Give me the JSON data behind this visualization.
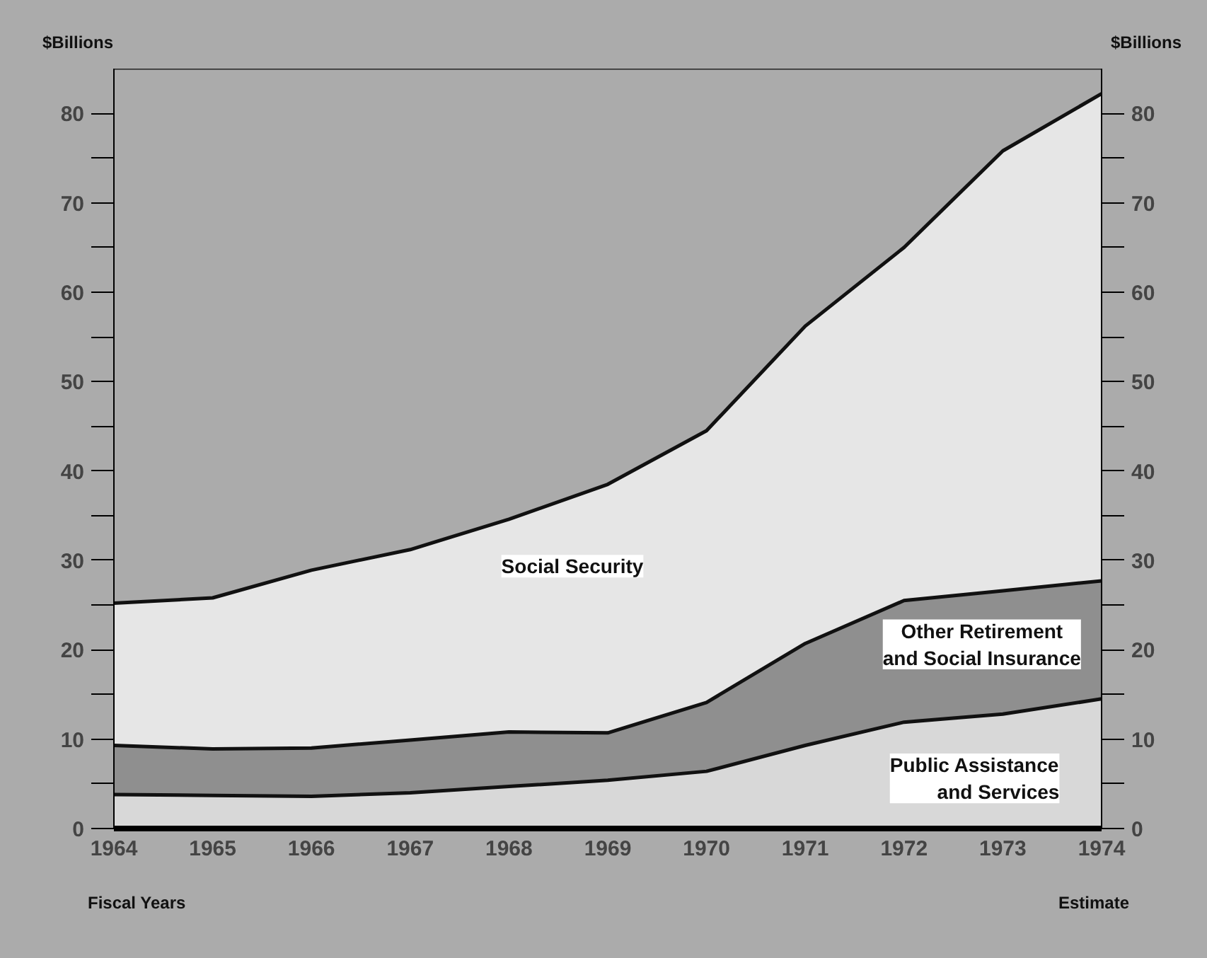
{
  "chart_data": {
    "type": "area",
    "stacked": true,
    "ylabel": "$Billions",
    "y2label": "$Billions",
    "x": [
      1964,
      1965,
      1966,
      1967,
      1968,
      1969,
      1970,
      1971,
      1972,
      1973,
      1974
    ],
    "xlim": [
      1964,
      1974
    ],
    "xticks": [
      1964,
      1965,
      1966,
      1967,
      1968,
      1969,
      1970,
      1971,
      1972,
      1973,
      1974
    ],
    "ylim": [
      0,
      85
    ],
    "yticks": [
      0,
      {
        "value": 5,
        "label": null
      },
      10,
      {
        "value": 15,
        "label": null
      },
      20,
      {
        "value": 25,
        "label": null
      },
      30,
      {
        "value": 35,
        "label": null
      },
      40,
      {
        "value": 45,
        "label": null
      },
      50,
      {
        "value": 55,
        "label": null
      },
      60,
      {
        "value": 65,
        "label": null
      },
      70,
      {
        "value": 75,
        "label": null
      },
      80
    ],
    "y2lim": [
      0,
      85
    ],
    "y2ticks": [
      0,
      {
        "value": 5,
        "label": null
      },
      10,
      {
        "value": 15,
        "label": null
      },
      20,
      {
        "value": 25,
        "label": null
      },
      30,
      {
        "value": 35,
        "label": null
      },
      40,
      {
        "value": 45,
        "label": null
      },
      50,
      {
        "value": 55,
        "label": null
      },
      60,
      {
        "value": 65,
        "label": null
      },
      70,
      {
        "value": 75,
        "label": null
      },
      80
    ],
    "series": [
      {
        "name": "Public Assistance\nand Services",
        "color": "#d8d8d8",
        "values": [
          3.8,
          3.7,
          3.6,
          4.0,
          4.7,
          5.4,
          6.4,
          9.3,
          11.9,
          12.8,
          14.5
        ]
      },
      {
        "name": "Other Retirement\nand Social Insurance",
        "color": "#8f8f8f",
        "values": [
          5.5,
          5.2,
          5.4,
          5.9,
          6.1,
          5.3,
          7.7,
          11.4,
          13.6,
          13.8,
          13.2
        ]
      },
      {
        "name": "Social Security",
        "color": "#e6e6e6",
        "values": [
          15.9,
          16.9,
          19.9,
          21.3,
          23.8,
          27.8,
          30.4,
          35.5,
          39.5,
          49.2,
          54.5
        ]
      }
    ],
    "annotations": [
      "Fiscal Years",
      "Estimate"
    ],
    "grid": false
  }
}
